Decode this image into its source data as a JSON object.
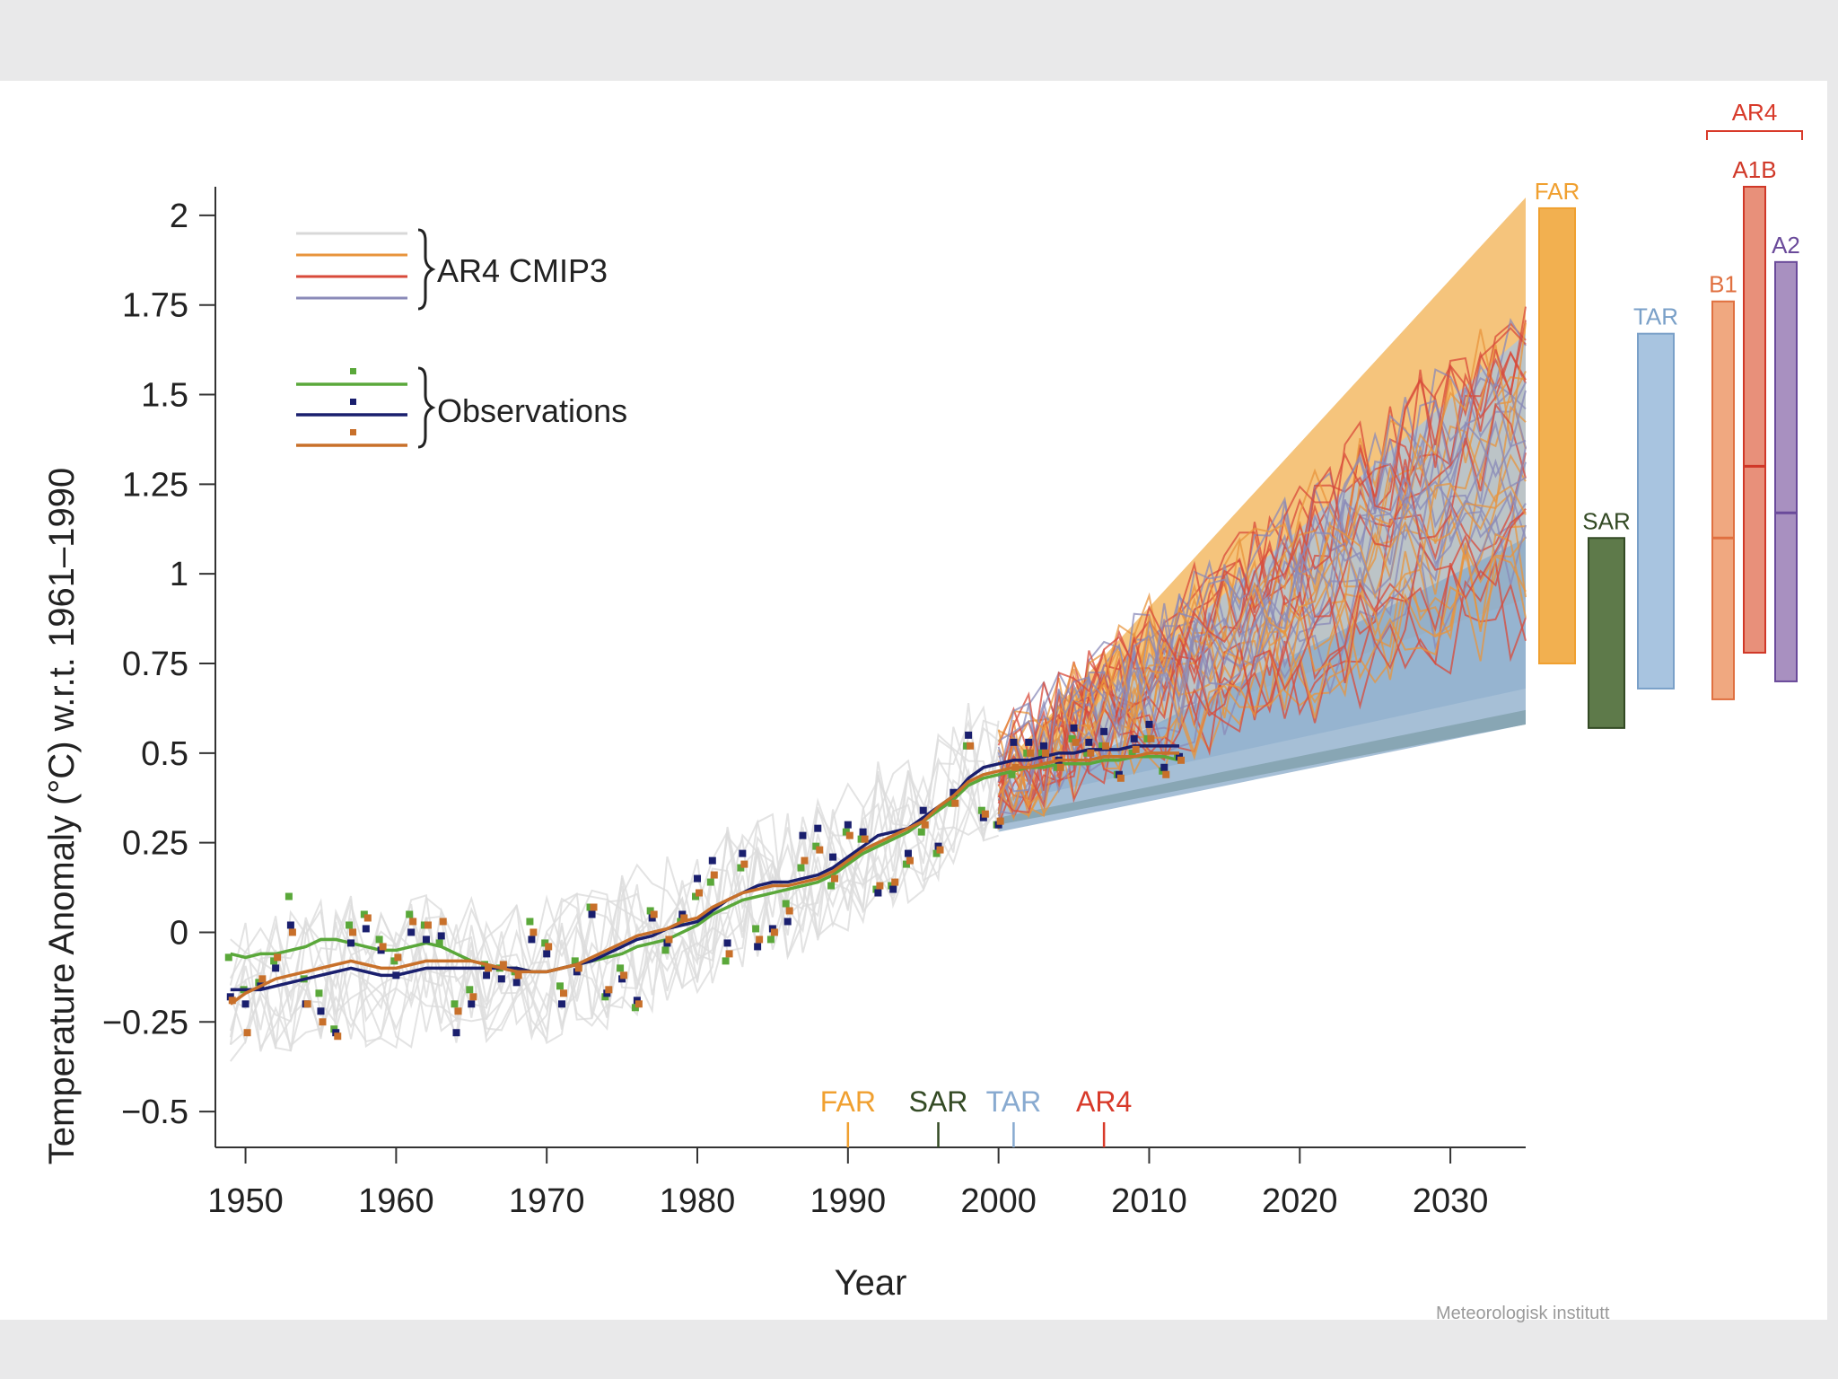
{
  "footer_note": "Meteorologisk institutt",
  "chart_data": {
    "type": "line",
    "title": "",
    "xlabel": "Year",
    "ylabel": "Temperature Anomaly (°C) w.r.t. 1961–1990",
    "xlim": [
      1948,
      2035
    ],
    "ylim": [
      -0.6,
      2.1
    ],
    "xticks": [
      1950,
      1960,
      1970,
      1980,
      1990,
      2000,
      2010,
      2020,
      2030
    ],
    "yticks": [
      {
        "value": 2,
        "label": "2"
      },
      {
        "value": 1.75,
        "label": "1.75"
      },
      {
        "value": 1.5,
        "label": "1.5"
      },
      {
        "value": 1.25,
        "label": "1.25"
      },
      {
        "value": 1,
        "label": "1"
      },
      {
        "value": 0.75,
        "label": "0.75"
      },
      {
        "value": 0.5,
        "label": "0.5"
      },
      {
        "value": 0.25,
        "label": "0.25"
      },
      {
        "value": 0,
        "label": "0"
      },
      {
        "value": -0.25,
        "label": "−0.25"
      },
      {
        "value": -0.5,
        "label": "−0.5"
      }
    ],
    "legend": {
      "placement": "top-left",
      "model_label": "AR4 CMIP3",
      "model_colors": [
        "#d8d8d8",
        "#e8943c",
        "#d84a3a",
        "#8a8ab8"
      ],
      "observations_label": "Observations",
      "observation_colors": [
        "#5aa83a",
        "#1a1f6e",
        "#c8702a"
      ]
    },
    "observations": {
      "years": [
        1949,
        1950,
        1951,
        1952,
        1953,
        1954,
        1955,
        1956,
        1957,
        1958,
        1959,
        1960,
        1961,
        1962,
        1963,
        1964,
        1965,
        1966,
        1967,
        1968,
        1969,
        1970,
        1971,
        1972,
        1973,
        1974,
        1975,
        1976,
        1977,
        1978,
        1979,
        1980,
        1981,
        1982,
        1983,
        1984,
        1985,
        1986,
        1987,
        1988,
        1989,
        1990,
        1991,
        1992,
        1993,
        1994,
        1995,
        1996,
        1997,
        1998,
        1999,
        2000,
        2001,
        2002,
        2003,
        2004,
        2005,
        2006,
        2007,
        2008,
        2009,
        2010,
        2011,
        2012
      ],
      "series": [
        {
          "name": "Observations (green)",
          "color": "#5aa83a",
          "annual": [
            -0.07,
            -0.16,
            -0.14,
            -0.08,
            0.1,
            -0.13,
            -0.17,
            -0.27,
            0.02,
            0.05,
            -0.02,
            -0.08,
            0.05,
            0.02,
            -0.03,
            -0.2,
            -0.16,
            -0.09,
            -0.1,
            -0.11,
            0.03,
            -0.03,
            -0.15,
            -0.08,
            0.07,
            -0.18,
            -0.1,
            -0.21,
            0.06,
            -0.05,
            0.03,
            0.1,
            0.14,
            -0.08,
            0.18,
            0.01,
            -0.02,
            0.08,
            0.18,
            0.24,
            0.13,
            0.28,
            0.26,
            0.12,
            0.13,
            0.19,
            0.28,
            0.22,
            0.36,
            0.52,
            0.34,
            0.3,
            0.44,
            0.5,
            0.5,
            0.46,
            0.54,
            0.5,
            0.52,
            0.44,
            0.5,
            0.54,
            0.45,
            0.49
          ],
          "smooth": [
            -0.06,
            -0.07,
            -0.06,
            -0.06,
            -0.05,
            -0.04,
            -0.02,
            -0.02,
            -0.03,
            -0.04,
            -0.05,
            -0.05,
            -0.04,
            -0.03,
            -0.04,
            -0.06,
            -0.08,
            -0.09,
            -0.1,
            -0.1,
            -0.11,
            -0.11,
            -0.1,
            -0.09,
            -0.08,
            -0.07,
            -0.06,
            -0.04,
            -0.03,
            -0.02,
            0,
            0.02,
            0.05,
            0.07,
            0.09,
            0.1,
            0.11,
            0.12,
            0.13,
            0.14,
            0.16,
            0.19,
            0.22,
            0.24,
            0.26,
            0.28,
            0.31,
            0.34,
            0.37,
            0.41,
            0.43,
            0.44,
            0.45,
            0.46,
            0.46,
            0.47,
            0.47,
            0.47,
            0.48,
            0.48,
            0.49,
            0.49,
            0.49,
            0.48
          ]
        },
        {
          "name": "Observations (navy)",
          "color": "#1a1f6e",
          "annual": [
            -0.18,
            -0.2,
            -0.15,
            -0.1,
            0.02,
            -0.2,
            -0.22,
            -0.28,
            -0.03,
            0.01,
            -0.05,
            -0.12,
            0.0,
            -0.02,
            -0.01,
            -0.28,
            -0.2,
            -0.12,
            -0.13,
            -0.14,
            -0.02,
            -0.06,
            -0.2,
            -0.11,
            0.05,
            -0.17,
            -0.13,
            -0.19,
            0.04,
            -0.03,
            0.05,
            0.15,
            0.2,
            -0.03,
            0.22,
            -0.04,
            0.01,
            0.03,
            0.27,
            0.29,
            0.21,
            0.3,
            0.28,
            0.11,
            0.12,
            0.22,
            0.34,
            0.24,
            0.39,
            0.55,
            0.32,
            0.3,
            0.53,
            0.53,
            0.52,
            0.48,
            0.57,
            0.53,
            0.56,
            0.44,
            0.54,
            0.58,
            0.46,
            0.49
          ],
          "smooth": [
            -0.16,
            -0.16,
            -0.16,
            -0.15,
            -0.14,
            -0.13,
            -0.12,
            -0.11,
            -0.1,
            -0.11,
            -0.12,
            -0.12,
            -0.11,
            -0.1,
            -0.1,
            -0.1,
            -0.1,
            -0.1,
            -0.1,
            -0.1,
            -0.11,
            -0.11,
            -0.1,
            -0.09,
            -0.08,
            -0.06,
            -0.04,
            -0.02,
            -0.01,
            0.01,
            0.02,
            0.03,
            0.06,
            0.09,
            0.11,
            0.13,
            0.14,
            0.14,
            0.15,
            0.16,
            0.18,
            0.21,
            0.24,
            0.27,
            0.28,
            0.29,
            0.32,
            0.35,
            0.38,
            0.43,
            0.46,
            0.47,
            0.48,
            0.48,
            0.49,
            0.5,
            0.5,
            0.51,
            0.51,
            0.51,
            0.52,
            0.52,
            0.52,
            0.52
          ]
        },
        {
          "name": "Observations (orange)",
          "color": "#c8702a",
          "annual": [
            -0.19,
            -0.28,
            -0.13,
            -0.07,
            0.0,
            -0.2,
            -0.25,
            -0.29,
            0.0,
            0.04,
            -0.04,
            -0.07,
            0.03,
            0.02,
            0.03,
            -0.22,
            -0.18,
            -0.1,
            -0.09,
            -0.12,
            0.0,
            -0.04,
            -0.17,
            -0.1,
            0.07,
            -0.16,
            -0.12,
            -0.2,
            0.05,
            -0.02,
            0.04,
            0.11,
            0.16,
            -0.06,
            0.19,
            -0.02,
            0.0,
            0.06,
            0.2,
            0.23,
            0.15,
            0.27,
            0.26,
            0.13,
            0.14,
            0.2,
            0.3,
            0.23,
            0.36,
            0.52,
            0.33,
            0.31,
            0.46,
            0.5,
            0.5,
            0.46,
            0.53,
            0.5,
            0.52,
            0.43,
            0.51,
            0.54,
            0.44,
            0.48
          ],
          "smooth": [
            -0.2,
            -0.17,
            -0.15,
            -0.13,
            -0.12,
            -0.11,
            -0.1,
            -0.09,
            -0.08,
            -0.09,
            -0.1,
            -0.1,
            -0.09,
            -0.08,
            -0.08,
            -0.08,
            -0.08,
            -0.09,
            -0.1,
            -0.11,
            -0.11,
            -0.11,
            -0.1,
            -0.09,
            -0.07,
            -0.05,
            -0.03,
            -0.01,
            0,
            0.01,
            0.03,
            0.04,
            0.07,
            0.09,
            0.11,
            0.12,
            0.13,
            0.13,
            0.14,
            0.15,
            0.17,
            0.2,
            0.23,
            0.25,
            0.27,
            0.29,
            0.31,
            0.35,
            0.38,
            0.42,
            0.44,
            0.45,
            0.46,
            0.46,
            0.47,
            0.48,
            0.48,
            0.48,
            0.49,
            0.49,
            0.49,
            0.5,
            0.5,
            0.5
          ]
        }
      ]
    },
    "projection_bands": [
      {
        "name": "FAR",
        "color": "#f2b050",
        "years": [
          2000,
          2035
        ],
        "low": [
          0.43,
          0.93
        ],
        "high": [
          0.45,
          2.05
        ]
      },
      {
        "name": "TAR",
        "color": "#a8c4e0",
        "years": [
          2000,
          2035
        ],
        "low": [
          0.36,
          0.68
        ],
        "high": [
          0.4,
          1.67
        ]
      },
      {
        "name": "SAR",
        "color": "#5e7a4a",
        "years": [
          2000,
          2035
        ],
        "low": [
          0.3,
          0.58
        ],
        "high": [
          0.32,
          0.62
        ]
      },
      {
        "name": "TAR (lower)",
        "color": "#88aac8",
        "years": [
          2000,
          2035
        ],
        "low": [
          0.28,
          0.58
        ],
        "high": [
          0.36,
          1.1
        ]
      }
    ],
    "projection_bars_2035": [
      {
        "label": "FAR",
        "low": 0.75,
        "high": 2.02,
        "color": "#f2b050",
        "label_color": "#f0a030"
      },
      {
        "label": "SAR",
        "low": 0.57,
        "high": 1.1,
        "color": "#5e7a4a",
        "label_color": "#334a24"
      },
      {
        "label": "TAR",
        "low": 0.68,
        "high": 1.67,
        "color": "#a8c4e0",
        "label_color": "#7aa0c8"
      },
      {
        "label": "B1",
        "low": 0.65,
        "high": 1.76,
        "mid": 1.1,
        "color": "#f0a880",
        "label_color": "#e07040"
      },
      {
        "label": "A1B",
        "low": 0.78,
        "high": 2.08,
        "mid": 1.3,
        "color": "#e8907a",
        "label_color": "#d03828"
      },
      {
        "label": "A2",
        "low": 0.7,
        "high": 1.87,
        "mid": 1.17,
        "color": "#a890c0",
        "label_color": "#6a4a9a"
      }
    ],
    "ar4_group_label": "AR4",
    "report_markers": [
      {
        "label": "FAR",
        "year": 1990,
        "color": "#f0a030"
      },
      {
        "label": "SAR",
        "year": 1996,
        "color": "#334a24"
      },
      {
        "label": "TAR",
        "year": 2001,
        "color": "#88aad0"
      },
      {
        "label": "AR4",
        "year": 2007,
        "color": "#d83a2a"
      }
    ]
  }
}
